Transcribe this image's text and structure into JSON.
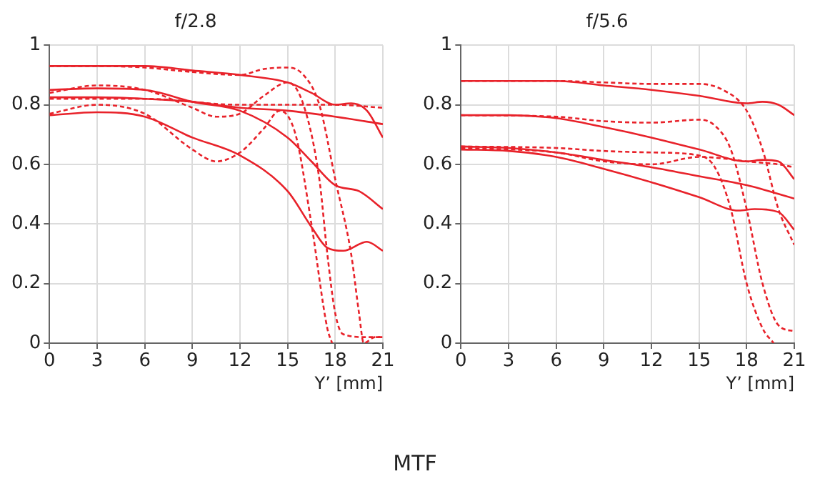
{
  "chart_data": [
    {
      "type": "line",
      "title": "f/2.8",
      "xlabel": "Y’ [mm]",
      "annotations": [
        "MTF"
      ],
      "xlim": [
        0,
        21
      ],
      "xticks": [
        0,
        3,
        6,
        9,
        12,
        15,
        18,
        21
      ],
      "ylim": [
        0,
        1
      ],
      "yticks": [
        0,
        0.2,
        0.4,
        0.6,
        0.8,
        1
      ],
      "grid": true,
      "legend": false,
      "marker": "none",
      "series": [
        {
          "color": "#e8222a",
          "line_style": "solid",
          "x": [
            0,
            3,
            6,
            9,
            12,
            15,
            16.5,
            18,
            19,
            20,
            21
          ],
          "values": [
            0.93,
            0.93,
            0.93,
            0.915,
            0.9,
            0.875,
            0.84,
            0.8,
            0.805,
            0.78,
            0.69
          ]
        },
        {
          "color": "#e8222a",
          "line_style": "solid",
          "x": [
            0,
            3,
            6,
            9,
            12,
            15,
            16.5,
            18,
            19.5,
            21
          ],
          "values": [
            0.85,
            0.855,
            0.85,
            0.81,
            0.78,
            0.69,
            0.61,
            0.53,
            0.51,
            0.45
          ]
        },
        {
          "color": "#e8222a",
          "line_style": "solid",
          "x": [
            0,
            3,
            6,
            9,
            12,
            15,
            18,
            21
          ],
          "values": [
            0.825,
            0.825,
            0.82,
            0.81,
            0.79,
            0.78,
            0.76,
            0.735
          ]
        },
        {
          "color": "#e8222a",
          "line_style": "solid",
          "x": [
            0,
            3,
            6,
            9,
            12,
            15,
            16.5,
            17.5,
            18.5,
            20,
            21
          ],
          "values": [
            0.765,
            0.775,
            0.76,
            0.69,
            0.63,
            0.51,
            0.39,
            0.32,
            0.31,
            0.34,
            0.31
          ]
        },
        {
          "color": "#e8222a",
          "line_style": "dashed",
          "x": [
            0,
            3,
            6,
            9,
            12,
            13.5,
            15,
            16,
            17,
            18,
            19,
            19.5,
            19.8,
            20.5,
            21
          ],
          "values": [
            0.93,
            0.93,
            0.925,
            0.91,
            0.9,
            0.92,
            0.925,
            0.9,
            0.8,
            0.55,
            0.3,
            0.1,
            0,
            0.02,
            0.02
          ]
        },
        {
          "color": "#e8222a",
          "line_style": "dashed",
          "x": [
            0,
            3,
            6,
            9,
            10.5,
            12,
            13.5,
            15,
            16,
            17,
            17.5,
            18,
            18.5,
            20,
            21
          ],
          "values": [
            0.84,
            0.865,
            0.85,
            0.79,
            0.76,
            0.77,
            0.83,
            0.875,
            0.8,
            0.55,
            0.3,
            0.1,
            0.03,
            0.02,
            0.02
          ]
        },
        {
          "color": "#e8222a",
          "line_style": "dashed",
          "x": [
            0,
            6,
            12,
            15,
            18,
            21
          ],
          "values": [
            0.82,
            0.82,
            0.8,
            0.8,
            0.8,
            0.79
          ]
        },
        {
          "color": "#e8222a",
          "line_style": "dashed",
          "x": [
            0,
            3,
            6,
            9,
            10.5,
            12,
            13.5,
            14.5,
            15.5,
            16.5,
            17.5,
            17.8
          ],
          "values": [
            0.77,
            0.8,
            0.77,
            0.65,
            0.61,
            0.64,
            0.72,
            0.78,
            0.7,
            0.4,
            0.05,
            0
          ]
        }
      ]
    },
    {
      "type": "line",
      "title": "f/5.6",
      "xlabel": "Y’ [mm]",
      "xlim": [
        0,
        21
      ],
      "xticks": [
        0,
        3,
        6,
        9,
        12,
        15,
        18,
        21
      ],
      "ylim": [
        0,
        1
      ],
      "yticks": [
        0,
        0.2,
        0.4,
        0.6,
        0.8,
        1
      ],
      "grid": true,
      "legend": false,
      "marker": "none",
      "series": [
        {
          "color": "#e8222a",
          "line_style": "solid",
          "x": [
            0,
            6,
            9,
            12,
            15,
            18,
            19,
            20,
            21
          ],
          "values": [
            0.88,
            0.88,
            0.865,
            0.85,
            0.83,
            0.805,
            0.81,
            0.8,
            0.765
          ]
        },
        {
          "color": "#e8222a",
          "line_style": "solid",
          "x": [
            0,
            3,
            6,
            9,
            12,
            15,
            18,
            19,
            20,
            21
          ],
          "values": [
            0.765,
            0.765,
            0.755,
            0.725,
            0.69,
            0.65,
            0.61,
            0.615,
            0.61,
            0.55
          ]
        },
        {
          "color": "#e8222a",
          "line_style": "solid",
          "x": [
            0,
            3,
            6,
            9,
            12,
            15,
            18,
            21
          ],
          "values": [
            0.66,
            0.655,
            0.64,
            0.615,
            0.59,
            0.56,
            0.53,
            0.485
          ]
        },
        {
          "color": "#e8222a",
          "line_style": "solid",
          "x": [
            0,
            3,
            6,
            9,
            12,
            15,
            17.5,
            18.5,
            20,
            21
          ],
          "values": [
            0.65,
            0.645,
            0.625,
            0.585,
            0.54,
            0.49,
            0.445,
            0.45,
            0.44,
            0.38
          ]
        },
        {
          "color": "#e8222a",
          "line_style": "dashed",
          "x": [
            0,
            6,
            9,
            12,
            15,
            16.5,
            18,
            19,
            20,
            21
          ],
          "values": [
            0.88,
            0.88,
            0.875,
            0.87,
            0.87,
            0.85,
            0.78,
            0.65,
            0.45,
            0.33
          ]
        },
        {
          "color": "#e8222a",
          "line_style": "dashed",
          "x": [
            0,
            6,
            9,
            12,
            15,
            16,
            17,
            18,
            19,
            20,
            21
          ],
          "values": [
            0.765,
            0.76,
            0.745,
            0.74,
            0.75,
            0.73,
            0.65,
            0.45,
            0.2,
            0.06,
            0.04
          ]
        },
        {
          "color": "#e8222a",
          "line_style": "dashed",
          "x": [
            0,
            6,
            9,
            12,
            15,
            16,
            17,
            18,
            19,
            19.7
          ],
          "values": [
            0.66,
            0.655,
            0.645,
            0.64,
            0.63,
            0.59,
            0.45,
            0.2,
            0.05,
            0
          ]
        },
        {
          "color": "#e8222a",
          "line_style": "dashed",
          "x": [
            0,
            6,
            9,
            12,
            15,
            16.5,
            18,
            20,
            21
          ],
          "values": [
            0.655,
            0.64,
            0.61,
            0.6,
            0.625,
            0.62,
            0.61,
            0.6,
            0.59
          ]
        }
      ]
    }
  ]
}
